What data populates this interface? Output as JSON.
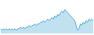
{
  "chart_data": {
    "type": "area",
    "values": [
      5,
      4,
      5,
      4,
      5,
      4,
      5,
      4,
      5,
      4,
      5,
      4,
      5,
      5,
      6,
      5,
      6,
      5,
      6,
      6,
      7,
      6,
      7,
      7,
      8,
      7,
      8,
      8,
      9,
      9,
      10,
      9,
      10,
      11,
      10,
      11,
      12,
      11,
      13,
      12,
      14,
      13,
      15,
      16,
      15,
      17,
      16,
      15,
      14,
      13,
      12,
      11,
      10,
      7,
      4,
      5,
      8,
      7,
      9,
      8,
      10,
      9,
      11,
      10,
      11,
      10
    ],
    "color": "#4badd4",
    "xlim": [
      0,
      65
    ],
    "ylim": [
      2,
      22
    ],
    "grid": false,
    "tick_labels": false
  }
}
